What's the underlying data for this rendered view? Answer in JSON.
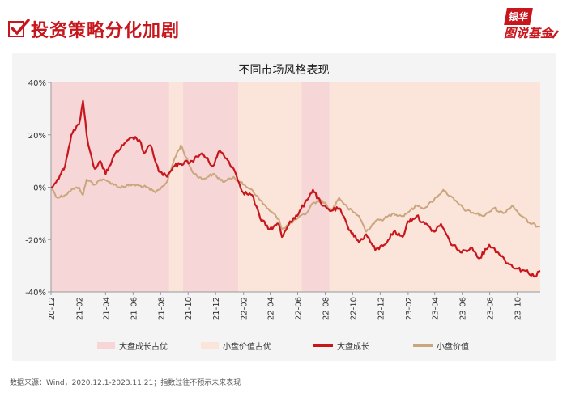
{
  "header": {
    "title": "投资策略分化加剧",
    "check_icon": "checkbox-check-icon"
  },
  "brand": {
    "line1": "银华",
    "line2": "图说基金"
  },
  "footer": {
    "source": "数据来源：Wind，2020.12.1-2023.11.21；指数过往不预示未来表现"
  },
  "colors": {
    "accent": "#c8161d",
    "large_growth": "#c8161d",
    "small_value": "#c9a67e",
    "large_growth_band": "#f6d6d6",
    "small_value_band": "#fbe4da",
    "panel": "#f4f4f4"
  },
  "chart_data": {
    "type": "line",
    "title": "不同市场风格表现",
    "xlabel": "",
    "ylabel": "",
    "ylim": [
      -40,
      40
    ],
    "yticks": [
      "40%",
      "20%",
      "0%",
      "-20%",
      "-40%"
    ],
    "ytick_values": [
      40,
      20,
      0,
      -20,
      -40
    ],
    "xlim": [
      "2020-12-01",
      "2023-11-21"
    ],
    "xticks": [
      "20-12",
      "21-02",
      "21-04",
      "21-06",
      "21-08",
      "21-10",
      "21-12",
      "22-02",
      "22-04",
      "22-06",
      "22-08",
      "22-10",
      "22-12",
      "23-02",
      "23-04",
      "23-06",
      "23-08",
      "23-10"
    ],
    "xtick_dates": [
      "2020-12-01",
      "2021-02-01",
      "2021-04-01",
      "2021-06-01",
      "2021-08-01",
      "2021-10-01",
      "2021-12-01",
      "2022-02-01",
      "2022-04-01",
      "2022-06-01",
      "2022-08-01",
      "2022-10-01",
      "2022-12-01",
      "2023-02-01",
      "2023-04-01",
      "2023-06-01",
      "2023-08-01",
      "2023-10-01"
    ],
    "grid": false,
    "legend_position": "bottom",
    "legend": [
      "大盘成长占优",
      "小盘价值占优",
      "大盘成长",
      "小盘价值"
    ],
    "periods": [
      {
        "name": "大盘成长占优",
        "start": "2020-12-01",
        "end": "2021-08-20"
      },
      {
        "name": "小盘价值占优",
        "start": "2021-08-20",
        "end": "2021-09-20"
      },
      {
        "name": "大盘成长占优",
        "start": "2021-09-20",
        "end": "2022-01-20"
      },
      {
        "name": "小盘价值占优",
        "start": "2022-01-20",
        "end": "2022-06-10"
      },
      {
        "name": "大盘成长占优",
        "start": "2022-06-10",
        "end": "2022-08-10"
      },
      {
        "name": "小盘价值占优",
        "start": "2022-08-10",
        "end": "2023-11-21"
      }
    ],
    "series": [
      {
        "name": "大盘成长",
        "x": [
          "2020-12-01",
          "2020-12-15",
          "2021-01-01",
          "2021-01-15",
          "2021-02-01",
          "2021-02-10",
          "2021-02-18",
          "2021-02-25",
          "2021-03-08",
          "2021-03-20",
          "2021-04-01",
          "2021-04-20",
          "2021-05-10",
          "2021-05-31",
          "2021-06-15",
          "2021-06-25",
          "2021-07-10",
          "2021-07-28",
          "2021-08-15",
          "2021-09-01",
          "2021-09-15",
          "2021-10-10",
          "2021-11-01",
          "2021-11-25",
          "2021-12-10",
          "2021-12-25",
          "2022-01-10",
          "2022-01-31",
          "2022-02-20",
          "2022-03-10",
          "2022-03-31",
          "2022-04-20",
          "2022-04-27",
          "2022-05-15",
          "2022-05-31",
          "2022-06-20",
          "2022-07-05",
          "2022-07-25",
          "2022-08-15",
          "2022-09-01",
          "2022-09-20",
          "2022-10-15",
          "2022-10-31",
          "2022-11-20",
          "2022-12-10",
          "2022-12-31",
          "2023-01-20",
          "2023-02-01",
          "2023-02-20",
          "2023-03-10",
          "2023-03-31",
          "2023-04-15",
          "2023-05-05",
          "2023-05-31",
          "2023-06-20",
          "2023-07-10",
          "2023-07-31",
          "2023-08-20",
          "2023-09-10",
          "2023-09-30",
          "2023-10-20",
          "2023-11-10",
          "2023-11-21"
        ],
        "values": [
          0,
          3,
          8,
          20,
          24,
          33,
          20,
          14,
          7,
          10,
          5,
          12,
          16,
          19,
          18,
          13,
          16,
          6,
          4,
          8,
          9,
          10,
          13,
          8,
          14,
          11,
          7,
          -2,
          -3,
          -12,
          -16,
          -14,
          -19,
          -13,
          -11,
          -5,
          -1,
          -7,
          -9,
          -8,
          -15,
          -21,
          -18,
          -24,
          -22,
          -17,
          -19,
          -13,
          -11,
          -14,
          -17,
          -14,
          -21,
          -25,
          -23,
          -27,
          -22,
          -25,
          -29,
          -31,
          -32,
          -34,
          -32
        ]
      },
      {
        "name": "小盘价值",
        "x": [
          "2020-12-01",
          "2020-12-15",
          "2021-01-01",
          "2021-01-15",
          "2021-02-01",
          "2021-02-10",
          "2021-02-18",
          "2021-03-08",
          "2021-03-20",
          "2021-04-10",
          "2021-05-01",
          "2021-05-31",
          "2021-06-30",
          "2021-07-20",
          "2021-07-28",
          "2021-08-15",
          "2021-09-01",
          "2021-09-15",
          "2021-10-10",
          "2021-11-01",
          "2021-11-25",
          "2021-12-20",
          "2022-01-10",
          "2022-01-31",
          "2022-02-20",
          "2022-03-10",
          "2022-03-31",
          "2022-04-20",
          "2022-04-27",
          "2022-05-31",
          "2022-06-20",
          "2022-07-05",
          "2022-07-25",
          "2022-08-15",
          "2022-09-01",
          "2022-09-20",
          "2022-10-15",
          "2022-10-31",
          "2022-11-20",
          "2022-12-10",
          "2022-12-31",
          "2023-01-20",
          "2023-02-20",
          "2023-03-10",
          "2023-04-10",
          "2023-04-20",
          "2023-05-15",
          "2023-06-10",
          "2023-06-30",
          "2023-07-20",
          "2023-08-10",
          "2023-08-31",
          "2023-09-20",
          "2023-10-10",
          "2023-10-31",
          "2023-11-21"
        ],
        "values": [
          0,
          -4,
          -3,
          -1,
          0,
          -3,
          3,
          1,
          3,
          2,
          0,
          1,
          0,
          -2,
          -1,
          2,
          11,
          16,
          6,
          3,
          5,
          2,
          4,
          1,
          -1,
          -5,
          -9,
          -12,
          -16,
          -12,
          -10,
          -6,
          -5,
          -9,
          -4,
          -8,
          -11,
          -17,
          -13,
          -12,
          -10,
          -11,
          -7,
          -8,
          -3,
          -1,
          -5,
          -9,
          -10,
          -11,
          -8,
          -10,
          -7,
          -11,
          -14,
          -15
        ]
      }
    ]
  }
}
